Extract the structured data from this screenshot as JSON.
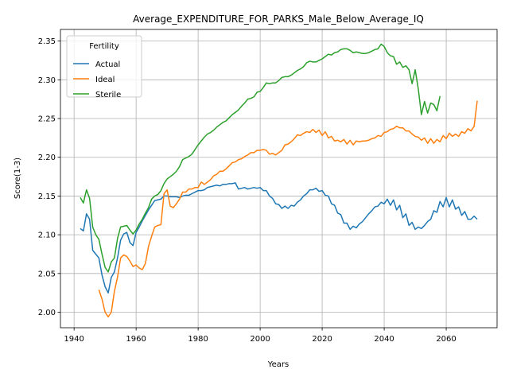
{
  "chart_data": {
    "type": "line",
    "title": "Average_EXPENDITURE_FOR_PARKS_Male_Below_Average_IQ",
    "xlabel": "Years",
    "ylabel": "Score(1-3)",
    "legend_title": "Fertility",
    "legend": "upper left",
    "grid": true,
    "xlim": [
      1935.6,
      2076.4
    ],
    "ylim": [
      1.98,
      2.365
    ],
    "xticks": [
      1940,
      1960,
      1980,
      2000,
      2020,
      2040,
      2060
    ],
    "yticks": [
      {
        "value": 2.0,
        "label": "2.00"
      },
      2.05,
      {
        "value": 2.1,
        "label": "2.10"
      },
      2.15,
      {
        "value": 2.2,
        "label": "2.20"
      },
      2.25,
      {
        "value": 2.3,
        "label": "2.30"
      },
      2.35
    ],
    "x": [
      1942,
      1943,
      1944,
      1945,
      1946,
      1947,
      1948,
      1949,
      1950,
      1951,
      1952,
      1953,
      1954,
      1955,
      1956,
      1957,
      1958,
      1959,
      1960,
      1961,
      1962,
      1963,
      1964,
      1965,
      1966,
      1967,
      1968,
      1969,
      1970,
      1971,
      1972,
      1973,
      1974,
      1975,
      1976,
      1977,
      1978,
      1979,
      1980,
      1981,
      1982,
      1983,
      1984,
      1985,
      1986,
      1987,
      1988,
      1989,
      1990,
      1991,
      1992,
      1993,
      1994,
      1995,
      1996,
      1997,
      1998,
      1999,
      2000,
      2001,
      2002,
      2003,
      2004,
      2005,
      2006,
      2007,
      2008,
      2009,
      2010,
      2011,
      2012,
      2013,
      2014,
      2015,
      2016,
      2017,
      2018,
      2019,
      2020,
      2021,
      2022,
      2023,
      2024,
      2025,
      2026,
      2027,
      2028,
      2029,
      2030,
      2031,
      2032,
      2033,
      2034,
      2035,
      2036,
      2037,
      2038,
      2039,
      2040,
      2041,
      2042,
      2043,
      2044,
      2045,
      2046,
      2047,
      2048,
      2049,
      2050,
      2051,
      2052,
      2053,
      2054,
      2055,
      2056,
      2057,
      2058,
      2059,
      2060,
      2061,
      2062,
      2063,
      2064,
      2065,
      2066,
      2067,
      2068,
      2069,
      2070
    ],
    "series": [
      {
        "name": "Actual",
        "color": "#1f77b4",
        "values": [
          2.108,
          2.105,
          2.127,
          2.12,
          2.08,
          2.075,
          2.07,
          2.048,
          2.033,
          2.025,
          2.045,
          2.052,
          2.07,
          2.093,
          2.101,
          2.103,
          2.09,
          2.086,
          2.103,
          2.11,
          2.118,
          2.125,
          2.132,
          2.138,
          2.144,
          2.145,
          2.146,
          2.15,
          2.15,
          2.149,
          2.149,
          2.149,
          2.148,
          2.15,
          2.151,
          2.151,
          2.153,
          2.155,
          2.157,
          2.157,
          2.158,
          2.161,
          2.162,
          2.163,
          2.164,
          2.163,
          2.165,
          2.165,
          2.166,
          2.166,
          2.167,
          2.159,
          2.16,
          2.161,
          2.159,
          2.16,
          2.161,
          2.16,
          2.161,
          2.157,
          2.157,
          2.15,
          2.147,
          2.14,
          2.139,
          2.134,
          2.137,
          2.134,
          2.138,
          2.137,
          2.142,
          2.145,
          2.15,
          2.153,
          2.158,
          2.158,
          2.16,
          2.156,
          2.157,
          2.151,
          2.15,
          2.14,
          2.138,
          2.128,
          2.126,
          2.115,
          2.115,
          2.107,
          2.111,
          2.109,
          2.114,
          2.117,
          2.122,
          2.127,
          2.131,
          2.136,
          2.137,
          2.142,
          2.14,
          2.146,
          2.138,
          2.145,
          2.132,
          2.138,
          2.122,
          2.127,
          2.112,
          2.116,
          2.107,
          2.11,
          2.108,
          2.112,
          2.117,
          2.12,
          2.131,
          2.129,
          2.143,
          2.136,
          2.148,
          2.136,
          2.145,
          2.133,
          2.136,
          2.125,
          2.13,
          2.12,
          2.12,
          2.124,
          2.12
        ]
      },
      {
        "name": "Ideal",
        "color": "#ff7f0e",
        "values": [
          null,
          null,
          null,
          null,
          null,
          null,
          2.029,
          2.017,
          2.0,
          1.994,
          2.0,
          2.027,
          2.045,
          2.07,
          2.074,
          2.072,
          2.066,
          2.059,
          2.061,
          2.057,
          2.055,
          2.063,
          2.085,
          2.098,
          2.11,
          2.112,
          2.113,
          2.153,
          2.158,
          2.137,
          2.135,
          2.14,
          2.146,
          2.155,
          2.155,
          2.159,
          2.159,
          2.161,
          2.161,
          2.168,
          2.165,
          2.168,
          2.171,
          2.176,
          2.178,
          2.182,
          2.182,
          2.185,
          2.189,
          2.193,
          2.194,
          2.197,
          2.198,
          2.201,
          2.203,
          2.206,
          2.206,
          2.209,
          2.209,
          2.21,
          2.209,
          2.204,
          2.205,
          2.203,
          2.206,
          2.209,
          2.216,
          2.217,
          2.22,
          2.224,
          2.229,
          2.228,
          2.231,
          2.233,
          2.232,
          2.236,
          2.232,
          2.235,
          2.228,
          2.233,
          2.225,
          2.227,
          2.221,
          2.222,
          2.22,
          2.223,
          2.217,
          2.222,
          2.216,
          2.221,
          2.22,
          2.221,
          2.221,
          2.222,
          2.224,
          2.225,
          2.228,
          2.227,
          2.232,
          2.233,
          2.236,
          2.237,
          2.24,
          2.238,
          2.238,
          2.234,
          2.234,
          2.23,
          2.227,
          2.226,
          2.222,
          2.225,
          2.218,
          2.224,
          2.218,
          2.223,
          2.22,
          2.228,
          2.224,
          2.231,
          2.227,
          2.23,
          2.227,
          2.233,
          2.231,
          2.237,
          2.234,
          2.24,
          2.273
        ]
      },
      {
        "name": "Sterile",
        "color": "#2ca02c",
        "values": [
          2.148,
          2.141,
          2.158,
          2.147,
          2.11,
          2.1,
          2.094,
          2.075,
          2.058,
          2.052,
          2.065,
          2.07,
          2.095,
          2.11,
          2.111,
          2.112,
          2.106,
          2.101,
          2.106,
          2.114,
          2.12,
          2.128,
          2.135,
          2.146,
          2.15,
          2.152,
          2.157,
          2.166,
          2.172,
          2.175,
          2.178,
          2.182,
          2.188,
          2.197,
          2.199,
          2.201,
          2.204,
          2.21,
          2.216,
          2.221,
          2.226,
          2.23,
          2.232,
          2.235,
          2.239,
          2.242,
          2.245,
          2.247,
          2.251,
          2.255,
          2.258,
          2.261,
          2.266,
          2.27,
          2.275,
          2.276,
          2.278,
          2.284,
          2.285,
          2.29,
          2.296,
          2.295,
          2.296,
          2.296,
          2.299,
          2.303,
          2.304,
          2.304,
          2.306,
          2.309,
          2.312,
          2.314,
          2.317,
          2.322,
          2.324,
          2.323,
          2.323,
          2.325,
          2.327,
          2.33,
          2.333,
          2.332,
          2.335,
          2.336,
          2.339,
          2.34,
          2.34,
          2.338,
          2.335,
          2.336,
          2.335,
          2.334,
          2.334,
          2.335,
          2.337,
          2.339,
          2.34,
          2.346,
          2.343,
          2.335,
          2.331,
          2.33,
          2.32,
          2.323,
          2.316,
          2.318,
          2.313,
          2.295,
          2.313,
          2.288,
          2.255,
          2.272,
          2.257,
          2.27,
          2.268,
          2.26,
          2.279,
          null,
          null,
          null,
          null,
          null,
          null,
          null,
          null,
          null,
          null,
          null,
          null
        ]
      }
    ]
  }
}
